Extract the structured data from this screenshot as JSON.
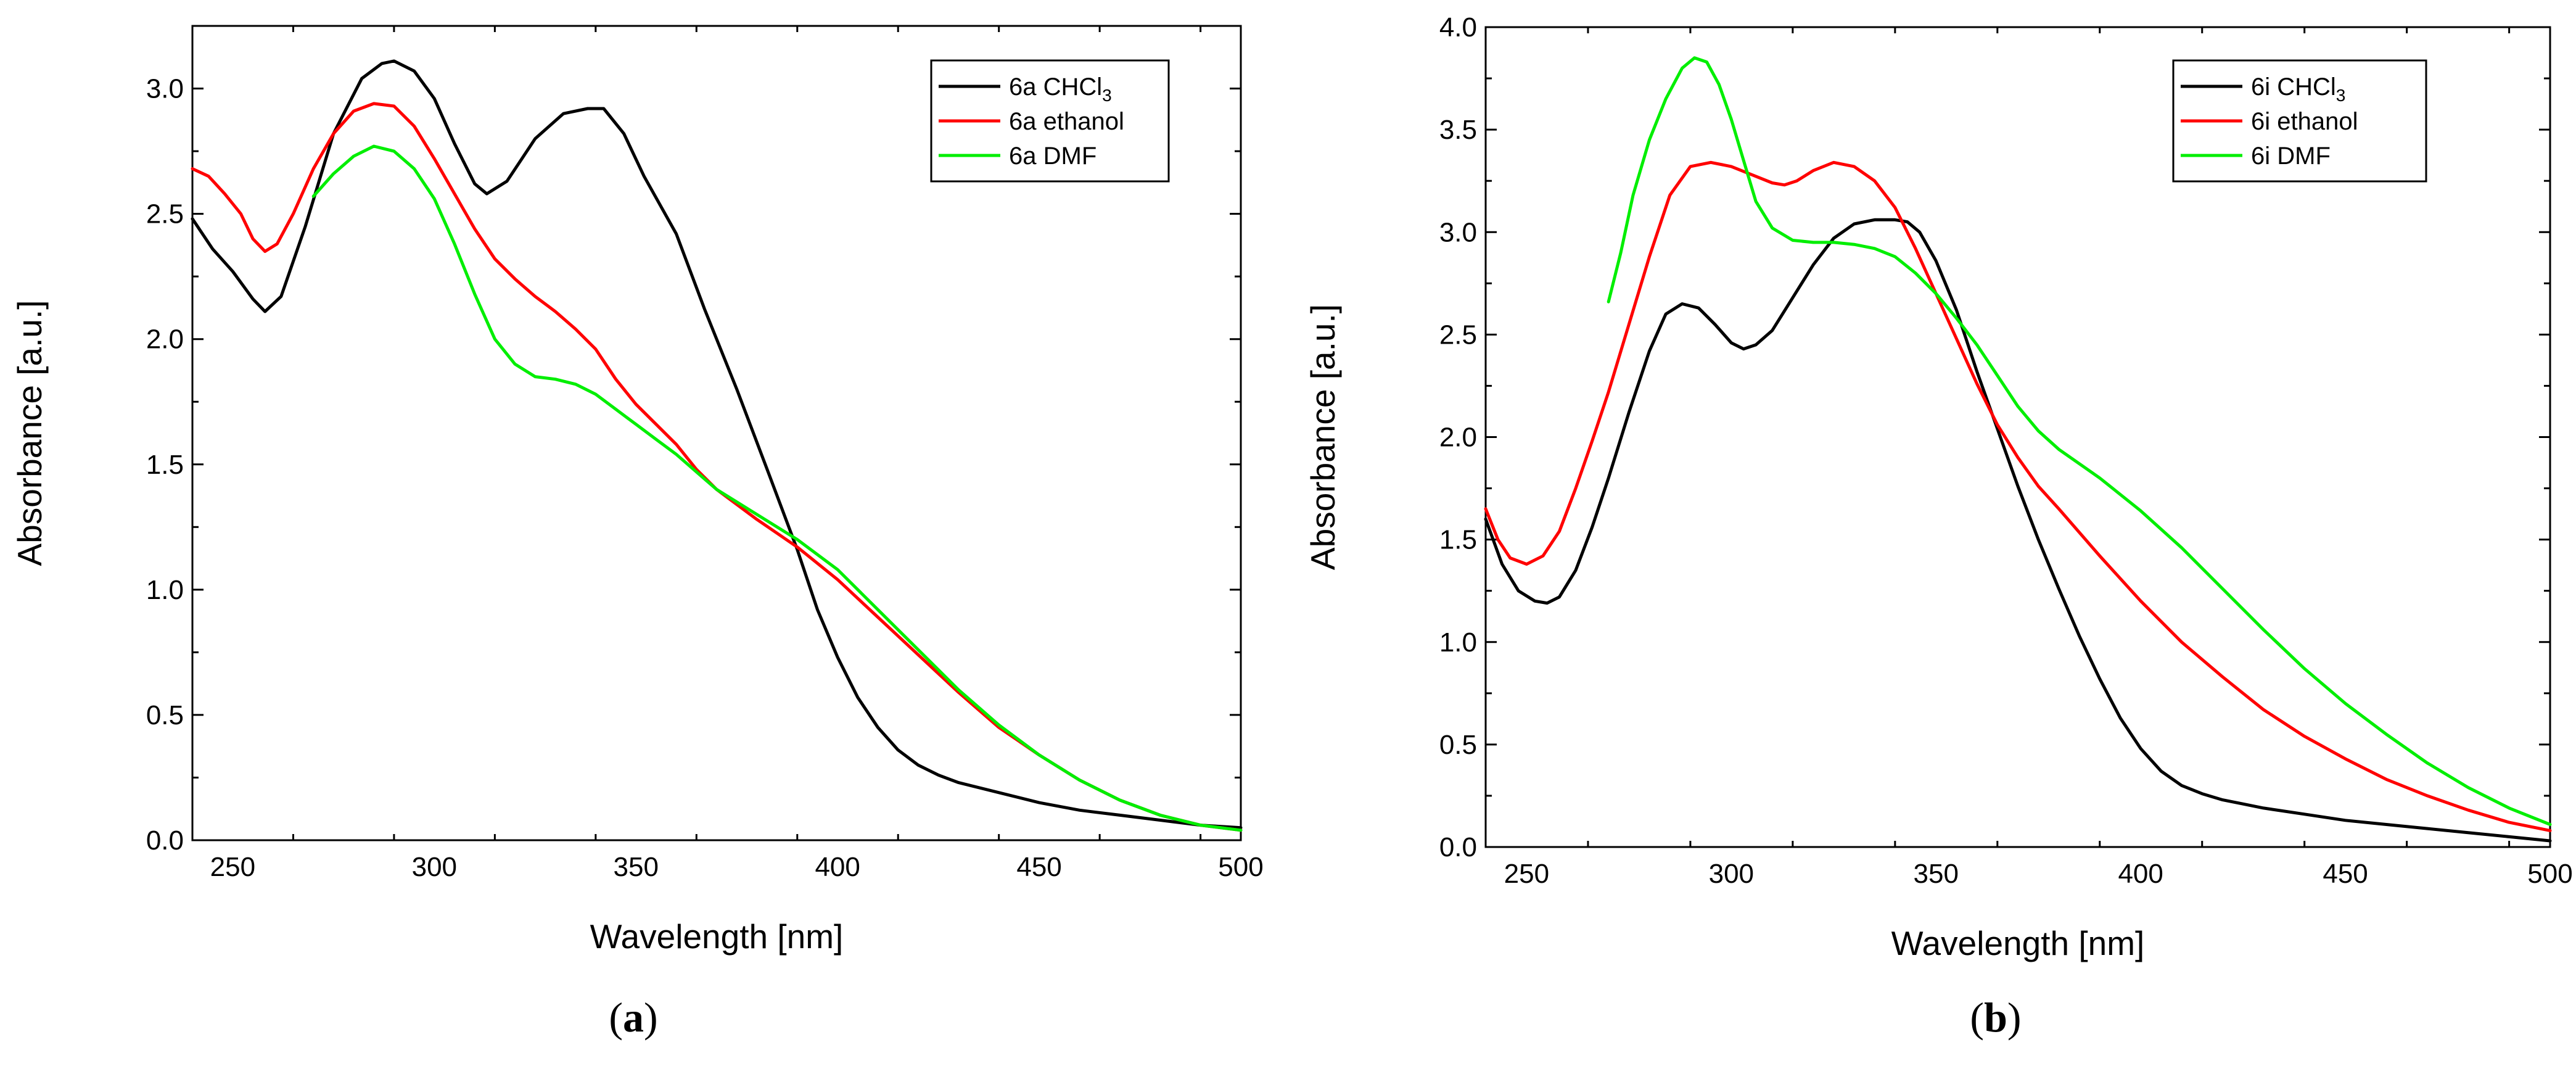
{
  "chart_data": [
    {
      "type": "line",
      "panel_label": "a",
      "caption": "(a)",
      "xlabel": "Wavelength [nm]",
      "ylabel": "Absorbance [a.u.]",
      "xlim": [
        240,
        500
      ],
      "ylim": [
        0,
        3.25
      ],
      "xticks": [
        250,
        300,
        350,
        400,
        450,
        500
      ],
      "yticks": [
        0.0,
        0.5,
        1.0,
        1.5,
        2.0,
        2.5,
        3.0
      ],
      "xtick_labels": [
        "250",
        "300",
        "350",
        "400",
        "450",
        "500"
      ],
      "ytick_labels": [
        "0.0",
        "0.5",
        "1.0",
        "1.5",
        "2.0",
        "2.5",
        "3.0"
      ],
      "legend_position": "top-right",
      "series": [
        {
          "name": "6a CHCl3",
          "label_main": "6a CHCl",
          "label_sub": "3",
          "color": "#000000",
          "x": [
            240,
            245,
            250,
            255,
            258,
            262,
            268,
            275,
            282,
            287,
            290,
            295,
            300,
            305,
            310,
            313,
            318,
            325,
            332,
            338,
            342,
            347,
            352,
            360,
            367,
            375,
            383,
            390,
            395,
            400,
            405,
            410,
            415,
            420,
            425,
            430,
            440,
            450,
            460,
            470,
            480,
            490,
            500
          ],
          "y": [
            2.48,
            2.36,
            2.27,
            2.16,
            2.11,
            2.17,
            2.45,
            2.82,
            3.04,
            3.1,
            3.11,
            3.07,
            2.96,
            2.78,
            2.62,
            2.58,
            2.63,
            2.8,
            2.9,
            2.92,
            2.92,
            2.82,
            2.65,
            2.42,
            2.12,
            1.8,
            1.46,
            1.16,
            0.92,
            0.73,
            0.57,
            0.45,
            0.36,
            0.3,
            0.26,
            0.23,
            0.19,
            0.15,
            0.12,
            0.1,
            0.08,
            0.06,
            0.05
          ]
        },
        {
          "name": "6a ethanol",
          "label_main": "6a ethanol",
          "label_sub": "",
          "color": "#ff0000",
          "x": [
            240,
            244,
            248,
            252,
            255,
            258,
            261,
            265,
            270,
            275,
            280,
            285,
            290,
            295,
            300,
            305,
            310,
            315,
            320,
            325,
            330,
            335,
            340,
            345,
            350,
            355,
            360,
            365,
            370,
            380,
            390,
            400,
            410,
            420,
            430,
            440,
            450,
            460,
            470,
            480,
            490,
            500
          ],
          "y": [
            2.68,
            2.65,
            2.58,
            2.5,
            2.4,
            2.35,
            2.38,
            2.5,
            2.68,
            2.82,
            2.91,
            2.94,
            2.93,
            2.85,
            2.72,
            2.58,
            2.44,
            2.32,
            2.24,
            2.17,
            2.11,
            2.04,
            1.96,
            1.84,
            1.74,
            1.66,
            1.58,
            1.48,
            1.4,
            1.28,
            1.17,
            1.04,
            0.89,
            0.74,
            0.59,
            0.45,
            0.34,
            0.24,
            0.16,
            0.1,
            0.06,
            0.04
          ]
        },
        {
          "name": "6a DMF",
          "label_main": "6a DMF",
          "label_sub": "",
          "color": "#00ee00",
          "x": [
            270,
            275,
            280,
            285,
            290,
            295,
            300,
            305,
            310,
            315,
            320,
            325,
            330,
            335,
            340,
            345,
            350,
            355,
            360,
            365,
            370,
            380,
            390,
            400,
            410,
            420,
            430,
            440,
            450,
            460,
            470,
            480,
            490,
            500
          ],
          "y": [
            2.57,
            2.66,
            2.73,
            2.77,
            2.75,
            2.68,
            2.56,
            2.38,
            2.18,
            2.0,
            1.9,
            1.85,
            1.84,
            1.82,
            1.78,
            1.72,
            1.66,
            1.6,
            1.54,
            1.47,
            1.4,
            1.3,
            1.2,
            1.08,
            0.92,
            0.76,
            0.6,
            0.46,
            0.34,
            0.24,
            0.16,
            0.1,
            0.06,
            0.04
          ]
        }
      ]
    },
    {
      "type": "line",
      "panel_label": "b",
      "caption": "(b)",
      "xlabel": "Wavelength [nm]",
      "ylabel": "Absorbance [a.u.]",
      "xlim": [
        240,
        500
      ],
      "ylim": [
        0,
        4.0
      ],
      "xticks": [
        250,
        300,
        350,
        400,
        450,
        500
      ],
      "yticks": [
        0.0,
        0.5,
        1.0,
        1.5,
        2.0,
        2.5,
        3.0,
        3.5,
        4.0
      ],
      "xtick_labels": [
        "250",
        "300",
        "350",
        "400",
        "450",
        "500"
      ],
      "ytick_labels": [
        "0.0",
        "0.5",
        "1.0",
        "1.5",
        "2.0",
        "2.5",
        "3.0",
        "3.5",
        "4.0"
      ],
      "legend_position": "top-right",
      "series": [
        {
          "name": "6i CHCl3",
          "label_main": "6i CHCl",
          "label_sub": "3",
          "color": "#000000",
          "x": [
            240,
            244,
            248,
            252,
            255,
            258,
            262,
            266,
            270,
            275,
            280,
            284,
            288,
            292,
            296,
            300,
            303,
            306,
            310,
            315,
            320,
            325,
            330,
            335,
            340,
            343,
            346,
            350,
            355,
            360,
            365,
            370,
            375,
            380,
            385,
            390,
            395,
            400,
            405,
            410,
            415,
            420,
            425,
            430,
            440,
            450,
            460,
            470,
            480,
            490,
            500
          ],
          "y": [
            1.6,
            1.38,
            1.25,
            1.2,
            1.19,
            1.22,
            1.35,
            1.56,
            1.8,
            2.12,
            2.42,
            2.6,
            2.65,
            2.63,
            2.55,
            2.46,
            2.43,
            2.45,
            2.52,
            2.68,
            2.84,
            2.97,
            3.04,
            3.06,
            3.06,
            3.05,
            3.0,
            2.86,
            2.62,
            2.32,
            2.04,
            1.76,
            1.5,
            1.26,
            1.03,
            0.82,
            0.63,
            0.48,
            0.37,
            0.3,
            0.26,
            0.23,
            0.21,
            0.19,
            0.16,
            0.13,
            0.11,
            0.09,
            0.07,
            0.05,
            0.03
          ]
        },
        {
          "name": "6i ethanol",
          "label_main": "6i ethanol",
          "label_sub": "",
          "color": "#ff0000",
          "x": [
            240,
            243,
            246,
            250,
            254,
            258,
            262,
            266,
            270,
            275,
            280,
            285,
            290,
            295,
            300,
            305,
            310,
            313,
            316,
            320,
            325,
            330,
            335,
            340,
            345,
            350,
            355,
            360,
            365,
            370,
            375,
            380,
            390,
            400,
            410,
            420,
            430,
            440,
            450,
            460,
            470,
            480,
            490,
            500
          ],
          "y": [
            1.65,
            1.5,
            1.41,
            1.38,
            1.42,
            1.54,
            1.75,
            1.98,
            2.22,
            2.55,
            2.88,
            3.18,
            3.32,
            3.34,
            3.32,
            3.28,
            3.24,
            3.23,
            3.25,
            3.3,
            3.34,
            3.32,
            3.25,
            3.12,
            2.92,
            2.7,
            2.48,
            2.26,
            2.06,
            1.9,
            1.76,
            1.65,
            1.42,
            1.2,
            1.0,
            0.83,
            0.67,
            0.54,
            0.43,
            0.33,
            0.25,
            0.18,
            0.12,
            0.08
          ]
        },
        {
          "name": "6i DMF",
          "label_main": "6i DMF",
          "label_sub": "",
          "color": "#00ee00",
          "x": [
            270,
            273,
            276,
            280,
            284,
            288,
            291,
            294,
            297,
            300,
            303,
            306,
            310,
            315,
            320,
            325,
            330,
            335,
            340,
            345,
            350,
            355,
            360,
            365,
            370,
            375,
            380,
            390,
            400,
            410,
            420,
            430,
            440,
            450,
            460,
            470,
            480,
            490,
            500
          ],
          "y": [
            2.66,
            2.9,
            3.18,
            3.45,
            3.65,
            3.8,
            3.85,
            3.83,
            3.72,
            3.55,
            3.35,
            3.15,
            3.02,
            2.96,
            2.95,
            2.95,
            2.94,
            2.92,
            2.88,
            2.8,
            2.7,
            2.58,
            2.45,
            2.3,
            2.15,
            2.03,
            1.94,
            1.8,
            1.64,
            1.46,
            1.26,
            1.06,
            0.87,
            0.7,
            0.55,
            0.41,
            0.29,
            0.19,
            0.11
          ]
        }
      ]
    }
  ]
}
